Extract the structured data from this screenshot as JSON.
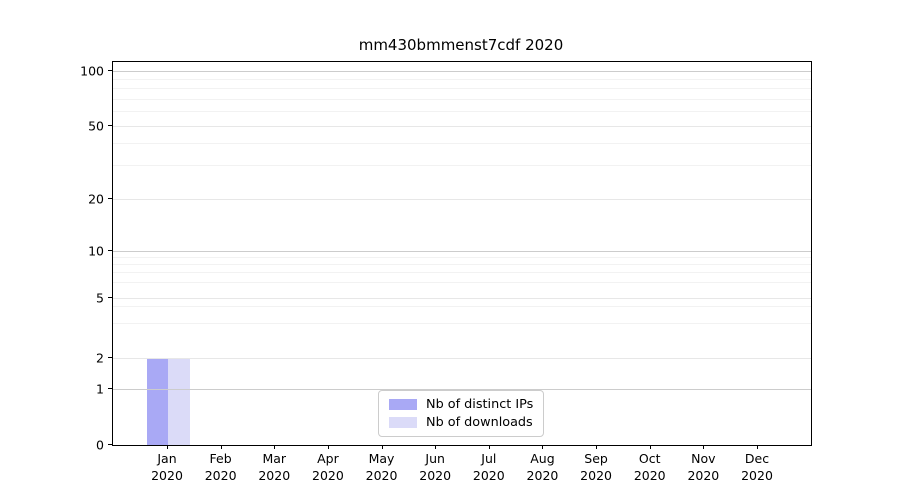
{
  "title": "mm430bmmenst7cdf 2020",
  "chart_data": {
    "type": "bar",
    "title": "mm430bmmenst7cdf 2020",
    "x_categories_line1": [
      "Jan",
      "Feb",
      "Mar",
      "Apr",
      "May",
      "Jun",
      "Jul",
      "Aug",
      "Sep",
      "Oct",
      "Nov",
      "Dec"
    ],
    "x_categories_line2": "2020",
    "y_scale": "symlog",
    "y_tick_values": [
      0,
      1,
      2,
      5,
      10,
      20,
      50,
      100
    ],
    "y_minor_gridline_values": [
      3,
      4,
      6,
      7,
      8,
      9,
      30,
      40,
      60,
      70,
      80,
      90
    ],
    "ylim": [
      0,
      110
    ],
    "grid": "horizontal",
    "legend_position": "lower center",
    "series": [
      {
        "name": "Nb of distinct IPs",
        "color": "#a9a9f5",
        "values": [
          2,
          0,
          0,
          0,
          0,
          0,
          0,
          0,
          0,
          0,
          0,
          0
        ]
      },
      {
        "name": "Nb of downloads",
        "color": "#dbdbf8",
        "values": [
          2,
          0,
          0,
          0,
          0,
          0,
          0,
          0,
          0,
          0,
          0,
          0
        ]
      }
    ]
  },
  "colors": {
    "background": "#ffffff",
    "spine": "#000000",
    "gridline_decade": "#cccccc",
    "gridline_labeled": "#e7e7e7",
    "gridline_minor": "#f2f2f2",
    "bar_distinct_ips": "#a9a9f5",
    "bar_downloads": "#dbdbf8",
    "legend_border": "#cccccc",
    "text": "#000000"
  }
}
